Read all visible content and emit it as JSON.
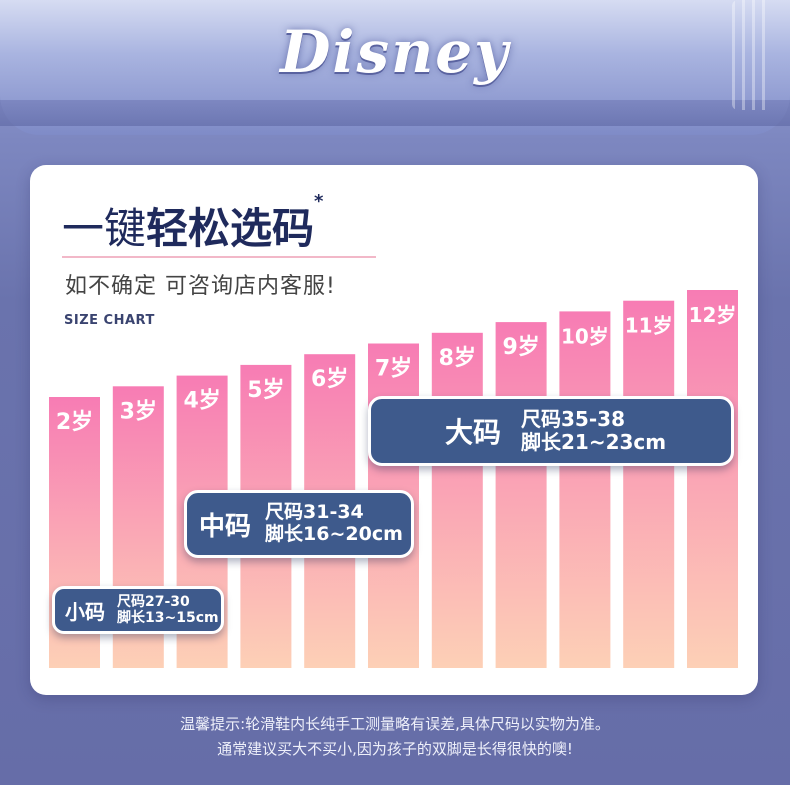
{
  "brand": {
    "logo_text": "Disney"
  },
  "header": {
    "title_prefix": "一键",
    "title_main": "轻松选码",
    "title_mark": "*",
    "subtitle": "如不确定 可咨询店内客服!",
    "chart_label": "SIZE CHART"
  },
  "chart_data": {
    "type": "bar",
    "categories": [
      "2岁",
      "3岁",
      "4岁",
      "5岁",
      "6岁",
      "7岁",
      "8岁",
      "9岁",
      "10岁",
      "11岁",
      "12岁"
    ],
    "values": [
      2,
      3,
      4,
      5,
      6,
      7,
      8,
      9,
      10,
      11,
      12
    ],
    "title": "一键轻松选码",
    "xlabel": "",
    "ylabel": "",
    "ylim": [
      0,
      12
    ],
    "colors": {
      "bar_top": "#f77cb4",
      "bar_bottom": "#fdd0b6"
    }
  },
  "badges": {
    "small": {
      "name": "小码",
      "size_range": "尺码27-30",
      "foot_length": "脚长13~15cm"
    },
    "medium": {
      "name": "中码",
      "size_range": "尺码31-34",
      "foot_length": "脚长16~20cm"
    },
    "large": {
      "name": "大码",
      "size_range": "尺码35-38",
      "foot_length": "脚长21~23cm"
    }
  },
  "footer": {
    "line1": "温馨提示:轮滑鞋内长纯手工测量略有误差,具体尺码以实物为准。",
    "line2": "通常建议买大不买小,因为孩子的双脚是长得很快的噢!"
  },
  "colors": {
    "badge_bg": "#3e5a8c",
    "title": "#1f2a5c",
    "background": "#6a73ad"
  }
}
